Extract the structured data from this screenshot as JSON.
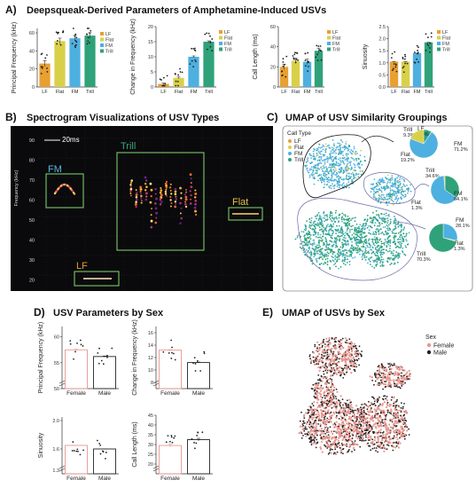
{
  "panels": {
    "A": {
      "letter": "A)",
      "title": "Deepsqueak-Derived Parameters of Amphetamine-Induced USVs"
    },
    "B": {
      "letter": "B)",
      "title": "Spectrogram Visualizations of USV Types",
      "scalebar": "20ms",
      "ylabel": "Frequency (kHz)",
      "yticks": [
        "90",
        "80",
        "70",
        "60",
        "50",
        "40",
        "30",
        "20"
      ],
      "boxes": [
        {
          "label": "FM",
          "color": "#5ab4e6"
        },
        {
          "label": "Trill",
          "color": "#3aa37a"
        },
        {
          "label": "Flat",
          "color": "#e8c34a"
        },
        {
          "label": "LF",
          "color": "#e89b2c"
        }
      ]
    },
    "C": {
      "letter": "C)",
      "title": "UMAP of USV Similarity Groupings",
      "legend_title": "Call Type",
      "legend": [
        {
          "label": "LF",
          "color": "#e8a030"
        },
        {
          "label": "Flat",
          "color": "#d9d04a"
        },
        {
          "label": "FM",
          "color": "#4db0e0"
        },
        {
          "label": "Trill",
          "color": "#2fa27a"
        }
      ],
      "pies": [
        {
          "slices": [
            {
              "label": "Trill",
              "pct": "9.3%",
              "value": 9.3,
              "color": "#2fa27a"
            },
            {
              "label": "LF",
              "pct": "0.3%",
              "value": 0.3,
              "color": "#e8a030"
            },
            {
              "label": "FM",
              "pct": "71.2%",
              "value": 71.2,
              "color": "#4db0e0"
            },
            {
              "label": "Flat",
              "pct": "19.2%",
              "value": 19.2,
              "color": "#d9d04a"
            }
          ]
        },
        {
          "slices": [
            {
              "label": "Trill",
              "pct": "34.6%",
              "value": 34.6,
              "color": "#2fa27a"
            },
            {
              "label": "FM",
              "pct": "64.1%",
              "value": 64.1,
              "color": "#4db0e0"
            },
            {
              "label": "Flat",
              "pct": "1.3%",
              "value": 1.3,
              "color": "#d9d04a"
            }
          ]
        },
        {
          "slices": [
            {
              "label": "FM",
              "pct": "28.1%",
              "value": 28.1,
              "color": "#4db0e0"
            },
            {
              "label": "Flat",
              "pct": "1.3%",
              "value": 1.3,
              "color": "#d9d04a"
            },
            {
              "label": "Trill",
              "pct": "70.3%",
              "value": 70.3,
              "color": "#2fa27a"
            }
          ]
        }
      ]
    },
    "D": {
      "letter": "D)",
      "title": "USV Parameters by Sex"
    },
    "E": {
      "letter": "E)",
      "title": "UMAP of USVs by Sex",
      "legend_title": "Sex",
      "legend": [
        {
          "label": "Female",
          "color": "#e8968f"
        },
        {
          "label": "Male",
          "color": "#222222"
        }
      ]
    }
  },
  "chart_data": [
    {
      "type": "bar",
      "panel": "A",
      "ylabel": "Principal Frequency (kHz)",
      "categories": [
        "LF",
        "Flat",
        "FM",
        "Trill"
      ],
      "values": [
        26,
        51,
        54,
        57
      ],
      "ylim": [
        0,
        65
      ],
      "yticks": [
        0,
        20,
        40,
        60
      ],
      "colors": [
        "#e8a030",
        "#d9d04a",
        "#4db0e0",
        "#2fa27a"
      ],
      "legend": [
        "LF",
        "Flat",
        "FM",
        "Trill"
      ]
    },
    {
      "type": "bar",
      "panel": "A",
      "ylabel": "Change in Frequency (kHz)",
      "categories": [
        "LF",
        "Flat",
        "FM",
        "Trill"
      ],
      "values": [
        1,
        3,
        10,
        15
      ],
      "ylim": [
        0,
        20
      ],
      "yticks": [
        0,
        5,
        10,
        15,
        20
      ],
      "colors": [
        "#e8a030",
        "#d9d04a",
        "#4db0e0",
        "#2fa27a"
      ],
      "legend": [
        "LF",
        "Flat",
        "FM",
        "Trill"
      ]
    },
    {
      "type": "bar",
      "panel": "A",
      "ylabel": "Call Length (ms)",
      "categories": [
        "LF",
        "Flat",
        "FM",
        "Trill"
      ],
      "values": [
        20,
        26,
        25,
        36
      ],
      "ylim": [
        0,
        60
      ],
      "yticks": [
        0,
        20,
        40,
        60
      ],
      "colors": [
        "#e8a030",
        "#d9d04a",
        "#4db0e0",
        "#2fa27a"
      ],
      "legend": [
        "LF",
        "Flat",
        "FM",
        "Trill"
      ]
    },
    {
      "type": "bar",
      "panel": "A",
      "ylabel": "Sinuosity",
      "categories": [
        "LF",
        "Flat",
        "FM",
        "Trill"
      ],
      "values": [
        1.05,
        1.05,
        1.4,
        1.85
      ],
      "ylim": [
        0,
        2.5
      ],
      "yticks": [
        "0.0",
        "0.5",
        "1.0",
        "1.5",
        "2.0",
        "2.5"
      ],
      "colors": [
        "#e8a030",
        "#d9d04a",
        "#4db0e0",
        "#2fa27a"
      ],
      "legend": [
        "LF",
        "Flat",
        "FM",
        "Trill"
      ]
    },
    {
      "type": "bar",
      "panel": "D",
      "ylabel": "Principal Frequency (kHz)",
      "categories": [
        "Female",
        "Male"
      ],
      "values": [
        57.5,
        56.2
      ],
      "ylim": [
        50,
        62
      ],
      "yticks": [
        50,
        55,
        60
      ],
      "colors": [
        "#e8968f",
        "#222222"
      ]
    },
    {
      "type": "bar",
      "panel": "D",
      "ylabel": "Change in Frequency (kHz)",
      "categories": [
        "Female",
        "Male"
      ],
      "values": [
        13.2,
        11.2
      ],
      "ylim": [
        7,
        17
      ],
      "yticks": [
        8,
        10,
        12,
        14,
        16
      ],
      "colors": [
        "#e8968f",
        "#222222"
      ]
    },
    {
      "type": "bar",
      "panel": "D",
      "ylabel": "Sinuosity",
      "categories": [
        "Female",
        "Male"
      ],
      "values": [
        1.65,
        1.6
      ],
      "ylim": [
        1.25,
        2.05
      ],
      "yticks": [
        "1.3",
        "1.6",
        "2.0"
      ],
      "colors": [
        "#e8968f",
        "#222222"
      ]
    },
    {
      "type": "bar",
      "panel": "D",
      "ylabel": "Call Length (ms)",
      "categories": [
        "Female",
        "Male"
      ],
      "values": [
        29.5,
        32.5
      ],
      "ylim": [
        15,
        45
      ],
      "yticks": [
        20,
        25,
        30,
        35,
        40,
        45
      ],
      "colors": [
        "#e8968f",
        "#222222"
      ]
    }
  ]
}
